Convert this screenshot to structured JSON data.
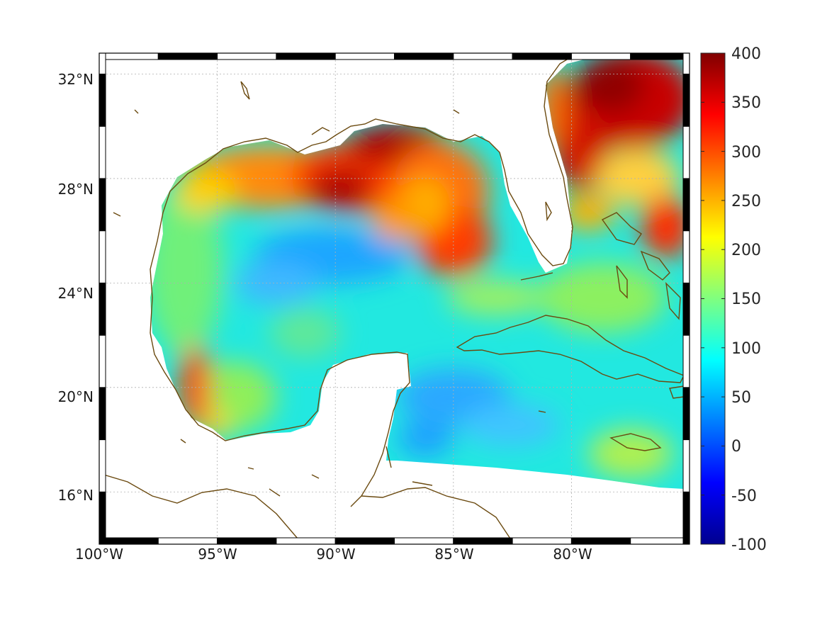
{
  "map": {
    "lon_range": [
      -100,
      -75
    ],
    "lat_range": [
      14,
      32.8
    ],
    "grid": true,
    "coastline_color": "#6b4a10",
    "lat_ticks": [
      {
        "value": 32,
        "label": "32°N"
      },
      {
        "value": 28,
        "label": "28°N"
      },
      {
        "value": 24,
        "label": "24°N"
      },
      {
        "value": 20,
        "label": "20°N"
      },
      {
        "value": 16,
        "label": "16°N"
      }
    ],
    "lon_ticks": [
      {
        "value": -100,
        "label": "100°W"
      },
      {
        "value": -95,
        "label": "95°W"
      },
      {
        "value": -90,
        "label": "90°W"
      },
      {
        "value": -85,
        "label": "85°W"
      },
      {
        "value": -80,
        "label": "80°W"
      }
    ]
  },
  "colorbar": {
    "min": -100,
    "max": 400,
    "colormap": "jet",
    "ticks": [
      "400",
      "350",
      "300",
      "250",
      "200",
      "150",
      "100",
      "50",
      "0",
      "-50",
      "-100"
    ]
  }
}
